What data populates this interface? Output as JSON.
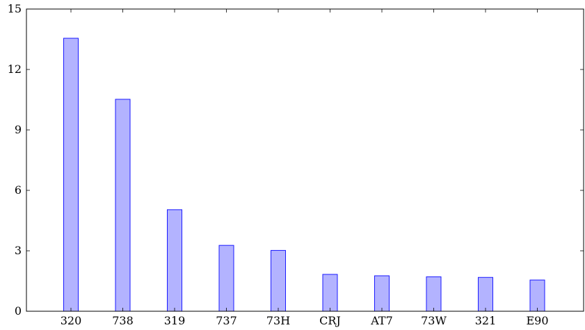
{
  "chart_data": {
    "type": "bar",
    "categories": [
      "320",
      "738",
      "319",
      "737",
      "73H",
      "CRJ",
      "AT7",
      "73W",
      "321",
      "E90"
    ],
    "values": [
      13.55,
      10.52,
      5.04,
      3.27,
      3.02,
      1.83,
      1.76,
      1.71,
      1.68,
      1.55
    ],
    "title": "",
    "xlabel": "",
    "ylabel": "",
    "ylim": [
      0,
      15
    ],
    "yticks": [
      0,
      3,
      6,
      9,
      12,
      15
    ],
    "grid": false,
    "colors": {
      "bar_fill": "#b3b3ff",
      "bar_stroke": "#1a1aff",
      "axis": "#000000"
    }
  }
}
